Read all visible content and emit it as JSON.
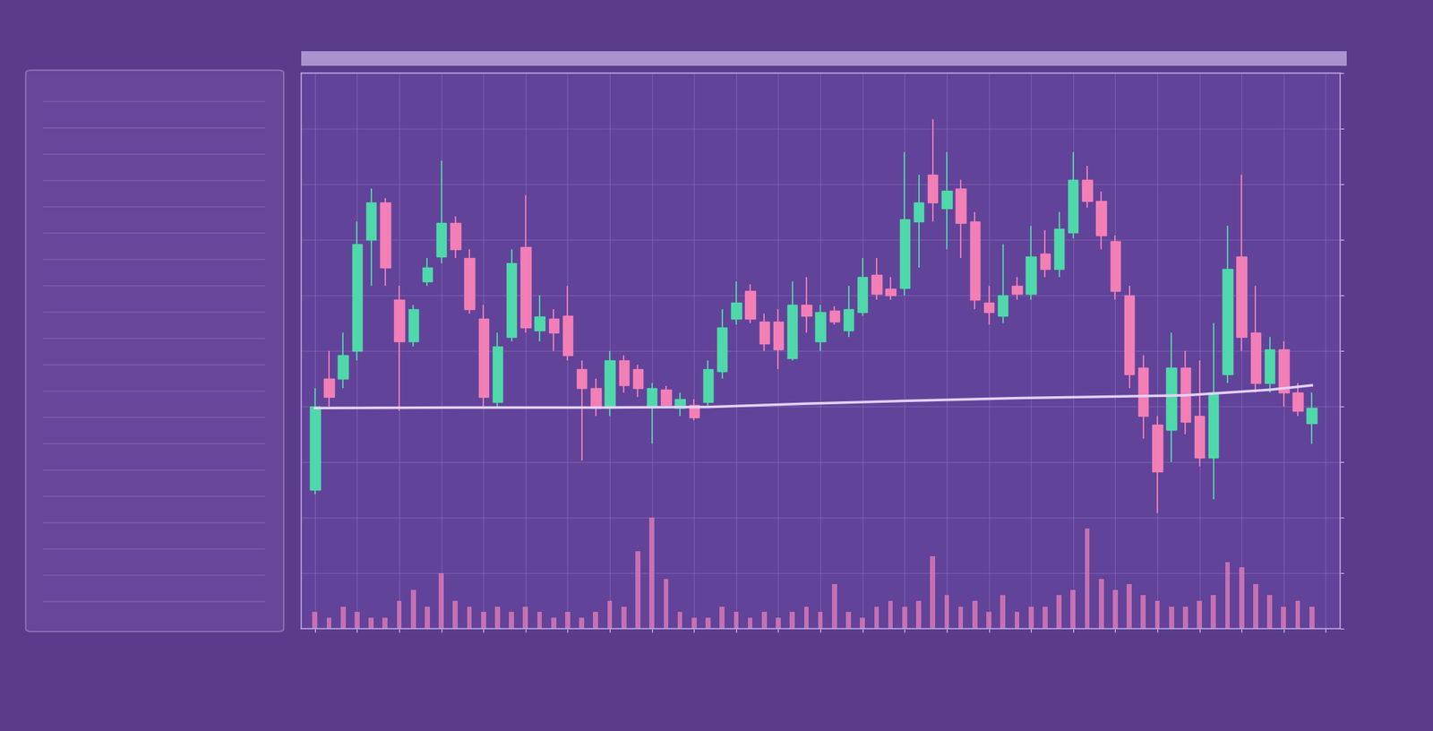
{
  "chart_data": {
    "type": "candlestick",
    "grid": true,
    "tick_labels": false,
    "xlim": [
      -1,
      73
    ],
    "ylim": [
      0,
      100
    ],
    "xticks": [
      0,
      3,
      6,
      9,
      12,
      15,
      18,
      21,
      24,
      27,
      30,
      33,
      36,
      39,
      42,
      45,
      48,
      51,
      54,
      57,
      60,
      63,
      66,
      69,
      72
    ],
    "yticks": [
      0,
      10,
      20,
      30,
      40,
      50,
      60,
      70,
      80,
      90,
      100
    ],
    "series": [
      {
        "type": "candlestick",
        "color": "#4fd8aa",
        "x": [
          0,
          2,
          3,
          4,
          7,
          8,
          9,
          13,
          14,
          16,
          21,
          24,
          26,
          28,
          29,
          30,
          34,
          36,
          38,
          39,
          42,
          43,
          45,
          49,
          51,
          53,
          54,
          61,
          64,
          65,
          68,
          71
        ],
        "open": [
          25,
          45,
          50,
          70,
          51.7,
          62.5,
          67,
          40.8,
          52.5,
          53.7,
          39.7,
          40,
          39.7,
          40.8,
          46.3,
          55.8,
          48.7,
          51.7,
          53.7,
          57,
          61.3,
          73.3,
          75.7,
          56.3,
          60.3,
          64.7,
          71.3,
          35.8,
          30.8,
          45.8,
          44.2,
          37
        ],
        "high": [
          43.3,
          53.3,
          73.3,
          79.2,
          58.3,
          66.7,
          84.2,
          53.3,
          68.3,
          60,
          50,
          44.2,
          42.5,
          48.3,
          57.5,
          62.5,
          62.5,
          58.3,
          61.7,
          66.7,
          85.8,
          81.7,
          85.8,
          69.2,
          72.5,
          75,
          85.8,
          53.3,
          55,
          72.5,
          52.5,
          42.5
        ],
        "low": [
          24.2,
          43.3,
          48.3,
          61.7,
          50.8,
          61.7,
          65.8,
          40,
          51.7,
          51.7,
          38.3,
          33.3,
          38.3,
          40,
          45,
          54.7,
          48.3,
          50,
          52.5,
          56.3,
          60,
          65,
          68.3,
          55,
          59.2,
          63.3,
          70.3,
          30,
          23.3,
          44.2,
          42.5,
          33.3
        ],
        "close": [
          40,
          49.2,
          69.2,
          76.7,
          57.5,
          65,
          73,
          50.8,
          65.8,
          56.2,
          48.3,
          43.3,
          41.3,
          46.7,
          54.2,
          58.7,
          58.3,
          57,
          57.5,
          63.3,
          73.7,
          76.7,
          78.8,
          60,
          67,
          72,
          80.8,
          47,
          42.5,
          64.7,
          50.3,
          39.7
        ]
      },
      {
        "type": "candlestick",
        "color": "#f27fb6",
        "x": [
          1,
          5,
          6,
          10,
          11,
          12,
          15,
          17,
          18,
          19,
          20,
          22,
          23,
          25,
          27,
          31,
          32,
          33,
          35,
          37,
          40,
          41,
          44,
          46,
          47,
          48,
          50,
          52,
          55,
          56,
          57,
          58,
          59,
          60,
          62,
          63,
          66,
          67,
          69,
          70
        ],
        "open": [
          45,
          76.7,
          59.2,
          73,
          66.7,
          55.8,
          68.7,
          55.8,
          56.3,
          46.7,
          43.3,
          48.3,
          46.7,
          43,
          40.3,
          60.8,
          55.3,
          55.3,
          58.3,
          57.3,
          63.7,
          61.2,
          81.7,
          79.2,
          73.3,
          58.7,
          61.7,
          67.5,
          80.8,
          77,
          69.7,
          60,
          47,
          36.7,
          47,
          38.3,
          67,
          53.3,
          50.3,
          42.5
        ],
        "high": [
          50,
          77.5,
          61.7,
          74.2,
          68.3,
          58.3,
          78,
          57.5,
          61.7,
          48.3,
          45,
          49.2,
          47.5,
          43.7,
          41.3,
          62,
          56.7,
          57.5,
          63.3,
          58,
          66.7,
          63.3,
          91.7,
          80.8,
          75,
          61.7,
          63.3,
          71.7,
          83.3,
          78.7,
          70.8,
          61.7,
          49.2,
          38.3,
          50,
          48.3,
          81.7,
          61.7,
          51.7,
          44.2
        ],
        "low": [
          40,
          61.7,
          39.2,
          66.7,
          56.7,
          40,
          53.3,
          50,
          48.3,
          30.3,
          38.3,
          42.5,
          41.7,
          39.7,
          37.5,
          55,
          50,
          46.7,
          53.3,
          54.7,
          59.2,
          59.2,
          73.3,
          66.7,
          57.5,
          54.7,
          59.2,
          63.3,
          75.8,
          68.3,
          59.2,
          43.3,
          34.2,
          20.8,
          35,
          29.2,
          50,
          42.5,
          40,
          38.3
        ],
        "close": [
          41.7,
          65,
          51.7,
          68.3,
          57.5,
          41.7,
          54.2,
          53.3,
          49.2,
          43.3,
          39.7,
          43.8,
          43.3,
          40.3,
          38,
          55.8,
          51.3,
          50.3,
          56.3,
          55.3,
          60.3,
          60,
          76.7,
          73,
          59.2,
          57,
          60.3,
          64.7,
          77,
          70.8,
          60.8,
          45.8,
          38.3,
          28.3,
          37.3,
          30.8,
          52.5,
          44.2,
          42.5,
          39.2
        ]
      },
      {
        "type": "line",
        "color": "#e2d2f5",
        "x": [
          0,
          10,
          20,
          28,
          35,
          42,
          50,
          55,
          62,
          68,
          71
        ],
        "values": [
          39.7,
          39.8,
          39.8,
          39.9,
          40.5,
          41,
          41.5,
          41.7,
          42,
          43,
          43.8
        ]
      },
      {
        "type": "bar",
        "color": "#e980b8",
        "x": [
          0,
          1,
          2,
          3,
          4,
          5,
          6,
          7,
          8,
          9,
          10,
          11,
          12,
          13,
          14,
          15,
          16,
          17,
          18,
          19,
          20,
          21,
          22,
          23,
          24,
          25,
          26,
          27,
          28,
          29,
          30,
          31,
          32,
          33,
          34,
          35,
          36,
          37,
          38,
          39,
          40,
          41,
          42,
          43,
          44,
          45,
          46,
          47,
          48,
          49,
          50,
          51,
          52,
          53,
          54,
          55,
          56,
          57,
          58,
          59,
          60,
          61,
          62,
          63,
          64,
          65,
          66,
          67,
          68,
          69,
          70,
          71
        ],
        "values": [
          3,
          2,
          4,
          3,
          2,
          2,
          5,
          7,
          4,
          10,
          5,
          4,
          3,
          4,
          3,
          4,
          3,
          2,
          3,
          2,
          3,
          5,
          4,
          14,
          20,
          9,
          3,
          2,
          2,
          4,
          3,
          2,
          3,
          2,
          3,
          4,
          3,
          8,
          3,
          2,
          4,
          5,
          4,
          5,
          13,
          6,
          4,
          5,
          3,
          6,
          3,
          4,
          4,
          6,
          7,
          18,
          9,
          7,
          8,
          6,
          5,
          4,
          4,
          5,
          6,
          12,
          11,
          8,
          6,
          4,
          5,
          4
        ]
      }
    ]
  }
}
